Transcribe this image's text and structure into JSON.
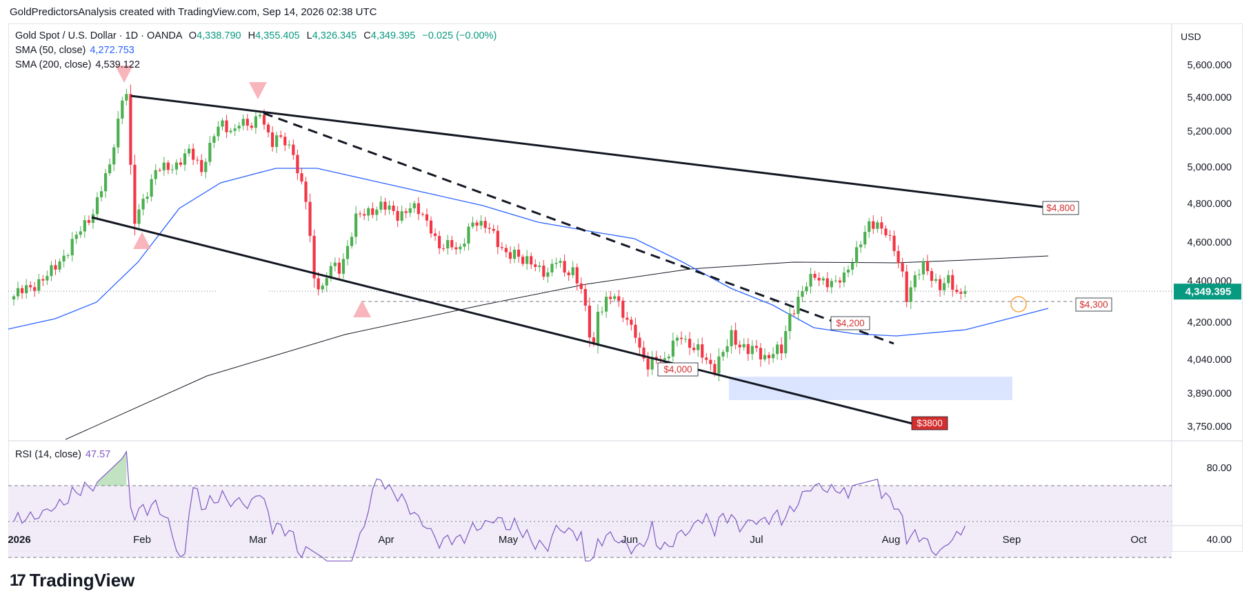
{
  "header": {
    "text": "GoldPredictorsAnalysis created with TradingView.com, Sep 14, 2026 02:38 UTC"
  },
  "legend": {
    "symbol": "Gold Spot / U.S. Dollar · 1D · OANDA",
    "o": "4,338.790",
    "h": "4,355.405",
    "l": "4,326.345",
    "c": "4,349.395",
    "chg": "−0.025 (−0.00%)",
    "sma50_label": "SMA (50, close)",
    "sma50_value": "4,272.753",
    "sma200_label": "SMA (200, close)",
    "sma200_value": "4,539.122",
    "rsi_label": "RSI (14, close)",
    "rsi_value": "47.57"
  },
  "currency": "USD",
  "brand": {
    "name": "TradingView",
    "logo": "17"
  },
  "colors": {
    "up": "#4caf50",
    "down": "#f23645",
    "sma50": "#2962ff",
    "sma200": "#131722",
    "rsi": "#7e57c2",
    "price_tag": "#089981",
    "zone": "#d6e0ff",
    "marker": "#f7a3ab"
  },
  "chart_data": {
    "type": "candlestick",
    "title": "Gold Spot / U.S. Dollar · 1D · OANDA",
    "x_ticks": [
      "2026",
      "Feb",
      "Mar",
      "Apr",
      "May",
      "Jun",
      "Jul",
      "Aug",
      "Sep",
      "Oct"
    ],
    "y_ticks": [
      "5,600.000",
      "5,400.000",
      "5,200.000",
      "5,000.000",
      "4,800.000",
      "4,600.000",
      "4,400.000",
      "4,200.000",
      "4,040.000",
      "3,890.000",
      "3,750.000"
    ],
    "last_price": "4,349.395",
    "reference_line": 4300,
    "annotations": [
      "$4,800",
      "$4,300",
      "$4,200",
      "$4,000",
      "$3800"
    ],
    "rsi": {
      "ticks": [
        "80.00",
        "40.00"
      ],
      "upper": 70,
      "middle": 50,
      "lower": 30
    },
    "grid": false
  }
}
